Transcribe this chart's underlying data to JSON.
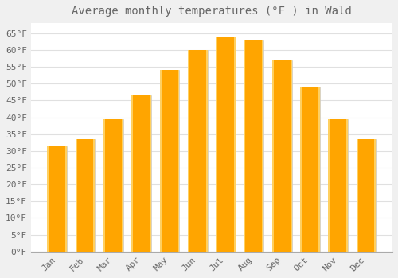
{
  "title": "Average monthly temperatures (°F ) in Wald",
  "months": [
    "Jan",
    "Feb",
    "Mar",
    "Apr",
    "May",
    "Jun",
    "Jul",
    "Aug",
    "Sep",
    "Oct",
    "Nov",
    "Dec"
  ],
  "values": [
    31.5,
    33.5,
    39.5,
    46.5,
    54.0,
    60.0,
    64.0,
    63.0,
    57.0,
    49.0,
    39.5,
    33.5
  ],
  "bar_color": "#FFA500",
  "bar_color_light": "#FFD060",
  "background_color": "#F0F0F0",
  "plot_bg_color": "#FFFFFF",
  "grid_color": "#E0E0E0",
  "text_color": "#666666",
  "ylim": [
    0,
    68
  ],
  "yticks": [
    0,
    5,
    10,
    15,
    20,
    25,
    30,
    35,
    40,
    45,
    50,
    55,
    60,
    65
  ],
  "title_fontsize": 10,
  "tick_fontsize": 8,
  "font_family": "monospace"
}
